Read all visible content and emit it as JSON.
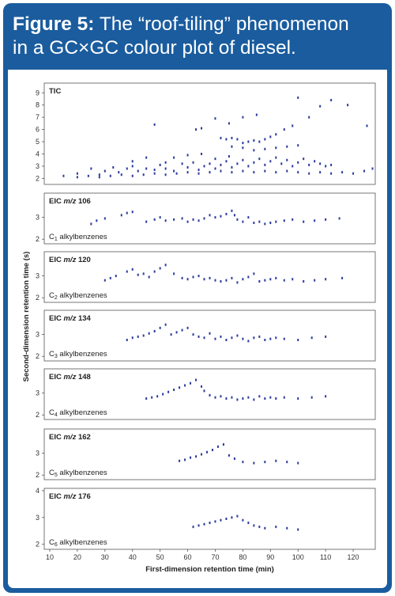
{
  "header": {
    "figure_label": "Figure 5:",
    "title_line1": "The “roof-tiling” phenomenon",
    "title_line2": "in a GC×GC colour plot of diesel."
  },
  "colors": {
    "frame": "#1a5c9e",
    "points": "#2b3a9c"
  },
  "chart_data": {
    "type": "scatter",
    "xlabel": "First-dimension retention time (min)",
    "ylabel": "Second-dimension retention time (s)",
    "xlim": [
      8,
      128
    ],
    "x_ticks": [
      10,
      20,
      30,
      40,
      50,
      60,
      70,
      80,
      90,
      100,
      110,
      120
    ],
    "panels": [
      {
        "label": "TIC",
        "ylim": [
          1.7,
          9.6
        ],
        "y_ticks": [
          2,
          3,
          4,
          5,
          6,
          7,
          8,
          9
        ],
        "points": [
          [
            48,
            6.4
          ],
          [
            63,
            6.0
          ],
          [
            65,
            6.1
          ],
          [
            70,
            6.9
          ],
          [
            75,
            6.5
          ],
          [
            80,
            7.0
          ],
          [
            85,
            7.2
          ],
          [
            100,
            8.6
          ],
          [
            108,
            7.9
          ],
          [
            112,
            8.4
          ],
          [
            118,
            8.0
          ],
          [
            125,
            6.3
          ],
          [
            72,
            5.3
          ],
          [
            74,
            5.2
          ],
          [
            76,
            5.3
          ],
          [
            78,
            5.2
          ],
          [
            80,
            4.9
          ],
          [
            82,
            5.0
          ],
          [
            84,
            5.1
          ],
          [
            86,
            5.0
          ],
          [
            88,
            5.2
          ],
          [
            90,
            5.4
          ],
          [
            92,
            5.6
          ],
          [
            95,
            6.0
          ],
          [
            98,
            6.3
          ],
          [
            104,
            7.0
          ],
          [
            76,
            4.6
          ],
          [
            80,
            4.5
          ],
          [
            84,
            4.3
          ],
          [
            88,
            4.4
          ],
          [
            92,
            4.5
          ],
          [
            96,
            4.6
          ],
          [
            100,
            4.7
          ],
          [
            40,
            3.4
          ],
          [
            45,
            3.7
          ],
          [
            52,
            3.3
          ],
          [
            55,
            3.7
          ],
          [
            60,
            3.9
          ],
          [
            65,
            4.0
          ],
          [
            70,
            3.6
          ],
          [
            75,
            3.8
          ],
          [
            15,
            2.2
          ],
          [
            20,
            2.4
          ],
          [
            25,
            2.8
          ],
          [
            28,
            2.3
          ],
          [
            30,
            2.6
          ],
          [
            33,
            2.9
          ],
          [
            35,
            2.5
          ],
          [
            38,
            2.8
          ],
          [
            40,
            3.0
          ],
          [
            42,
            2.6
          ],
          [
            45,
            2.8
          ],
          [
            48,
            2.7
          ],
          [
            50,
            3.1
          ],
          [
            52,
            2.8
          ],
          [
            55,
            2.6
          ],
          [
            58,
            3.2
          ],
          [
            60,
            2.9
          ],
          [
            62,
            3.3
          ],
          [
            64,
            2.7
          ],
          [
            66,
            3.0
          ],
          [
            68,
            3.2
          ],
          [
            70,
            2.8
          ],
          [
            72,
            3.1
          ],
          [
            74,
            3.4
          ],
          [
            76,
            2.9
          ],
          [
            78,
            3.2
          ],
          [
            80,
            3.5
          ],
          [
            82,
            3.0
          ],
          [
            84,
            3.3
          ],
          [
            86,
            3.6
          ],
          [
            88,
            3.1
          ],
          [
            90,
            3.4
          ],
          [
            92,
            3.7
          ],
          [
            94,
            3.2
          ],
          [
            96,
            3.5
          ],
          [
            98,
            3.0
          ],
          [
            100,
            3.3
          ],
          [
            102,
            3.6
          ],
          [
            104,
            3.1
          ],
          [
            106,
            3.4
          ],
          [
            108,
            3.2
          ],
          [
            110,
            3.0
          ],
          [
            112,
            3.1
          ],
          [
            20,
            2.1
          ],
          [
            24,
            2.2
          ],
          [
            28,
            2.1
          ],
          [
            32,
            2.2
          ],
          [
            36,
            2.3
          ],
          [
            40,
            2.2
          ],
          [
            44,
            2.3
          ],
          [
            48,
            2.4
          ],
          [
            52,
            2.3
          ],
          [
            56,
            2.4
          ],
          [
            60,
            2.5
          ],
          [
            64,
            2.4
          ],
          [
            68,
            2.5
          ],
          [
            72,
            2.6
          ],
          [
            76,
            2.5
          ],
          [
            80,
            2.6
          ],
          [
            84,
            2.5
          ],
          [
            88,
            2.6
          ],
          [
            92,
            2.5
          ],
          [
            96,
            2.6
          ],
          [
            100,
            2.5
          ],
          [
            104,
            2.4
          ],
          [
            108,
            2.5
          ],
          [
            112,
            2.4
          ],
          [
            116,
            2.5
          ],
          [
            120,
            2.4
          ],
          [
            124,
            2.6
          ],
          [
            127,
            2.8
          ]
        ]
      },
      {
        "label": "EIC m/z 106",
        "compound": "C1 alkylbenzenes",
        "ylim": [
          1.9,
          4.0
        ],
        "y_ticks": [
          2,
          3
        ],
        "points": [
          [
            25,
            2.7
          ],
          [
            27,
            2.85
          ],
          [
            30,
            2.95
          ],
          [
            36,
            3.1
          ],
          [
            38,
            3.2
          ],
          [
            40,
            3.25
          ],
          [
            45,
            2.8
          ],
          [
            48,
            2.9
          ],
          [
            50,
            3.0
          ],
          [
            52,
            2.85
          ],
          [
            55,
            2.9
          ],
          [
            58,
            2.95
          ],
          [
            60,
            2.8
          ],
          [
            62,
            2.9
          ],
          [
            64,
            2.85
          ],
          [
            66,
            2.95
          ],
          [
            68,
            3.1
          ],
          [
            70,
            3.0
          ],
          [
            72,
            3.05
          ],
          [
            74,
            3.15
          ],
          [
            76,
            3.3
          ],
          [
            77,
            3.1
          ],
          [
            78,
            2.9
          ],
          [
            80,
            2.8
          ],
          [
            82,
            3.0
          ],
          [
            84,
            2.75
          ],
          [
            86,
            2.8
          ],
          [
            88,
            2.7
          ],
          [
            90,
            2.75
          ],
          [
            92,
            2.8
          ],
          [
            95,
            2.85
          ],
          [
            98,
            2.9
          ],
          [
            102,
            2.8
          ],
          [
            106,
            2.85
          ],
          [
            110,
            2.9
          ],
          [
            115,
            2.95
          ]
        ]
      },
      {
        "label": "EIC m/z 120",
        "compound": "C2 alkylbenzenes",
        "ylim": [
          1.9,
          4.0
        ],
        "y_ticks": [
          2,
          3
        ],
        "points": [
          [
            30,
            2.8
          ],
          [
            32,
            2.9
          ],
          [
            34,
            3.0
          ],
          [
            38,
            3.2
          ],
          [
            40,
            3.3
          ],
          [
            42,
            3.05
          ],
          [
            44,
            3.1
          ],
          [
            46,
            2.95
          ],
          [
            48,
            3.2
          ],
          [
            50,
            3.35
          ],
          [
            52,
            3.5
          ],
          [
            55,
            3.1
          ],
          [
            58,
            2.9
          ],
          [
            60,
            2.85
          ],
          [
            62,
            2.95
          ],
          [
            64,
            3.0
          ],
          [
            66,
            2.85
          ],
          [
            68,
            2.9
          ],
          [
            70,
            2.8
          ],
          [
            72,
            2.75
          ],
          [
            74,
            2.8
          ],
          [
            76,
            2.9
          ],
          [
            78,
            2.7
          ],
          [
            80,
            2.85
          ],
          [
            82,
            2.95
          ],
          [
            84,
            3.1
          ],
          [
            86,
            2.75
          ],
          [
            88,
            2.8
          ],
          [
            90,
            2.85
          ],
          [
            92,
            2.9
          ],
          [
            95,
            2.8
          ],
          [
            98,
            2.85
          ],
          [
            102,
            2.75
          ],
          [
            106,
            2.8
          ],
          [
            110,
            2.85
          ],
          [
            116,
            2.9
          ]
        ]
      },
      {
        "label": "EIC m/z 134",
        "compound": "C3 alkylbenzenes",
        "ylim": [
          1.9,
          4.0
        ],
        "y_ticks": [
          2,
          3
        ],
        "points": [
          [
            38,
            2.75
          ],
          [
            40,
            2.85
          ],
          [
            42,
            2.9
          ],
          [
            44,
            2.95
          ],
          [
            46,
            3.05
          ],
          [
            48,
            3.15
          ],
          [
            50,
            3.3
          ],
          [
            52,
            3.45
          ],
          [
            54,
            3.0
          ],
          [
            56,
            3.1
          ],
          [
            58,
            3.2
          ],
          [
            60,
            3.3
          ],
          [
            62,
            3.0
          ],
          [
            64,
            2.9
          ],
          [
            66,
            2.85
          ],
          [
            68,
            3.05
          ],
          [
            70,
            2.8
          ],
          [
            72,
            2.9
          ],
          [
            74,
            2.75
          ],
          [
            76,
            2.85
          ],
          [
            78,
            2.95
          ],
          [
            80,
            2.8
          ],
          [
            82,
            2.7
          ],
          [
            84,
            2.85
          ],
          [
            86,
            2.9
          ],
          [
            88,
            2.75
          ],
          [
            90,
            2.8
          ],
          [
            92,
            2.85
          ],
          [
            95,
            2.8
          ],
          [
            100,
            2.75
          ],
          [
            105,
            2.85
          ],
          [
            110,
            2.9
          ]
        ]
      },
      {
        "label": "EIC m/z 148",
        "compound": "C4 alkylbenzenes",
        "ylim": [
          1.9,
          4.0
        ],
        "y_ticks": [
          2,
          3
        ],
        "points": [
          [
            45,
            2.75
          ],
          [
            47,
            2.8
          ],
          [
            49,
            2.85
          ],
          [
            51,
            2.95
          ],
          [
            53,
            3.05
          ],
          [
            55,
            3.15
          ],
          [
            57,
            3.25
          ],
          [
            59,
            3.35
          ],
          [
            61,
            3.45
          ],
          [
            63,
            3.6
          ],
          [
            65,
            3.3
          ],
          [
            66,
            3.1
          ],
          [
            68,
            2.9
          ],
          [
            70,
            2.8
          ],
          [
            72,
            2.85
          ],
          [
            74,
            2.75
          ],
          [
            76,
            2.8
          ],
          [
            78,
            2.7
          ],
          [
            80,
            2.75
          ],
          [
            82,
            2.8
          ],
          [
            84,
            2.7
          ],
          [
            86,
            2.85
          ],
          [
            88,
            2.75
          ],
          [
            90,
            2.8
          ],
          [
            92,
            2.75
          ],
          [
            95,
            2.8
          ],
          [
            100,
            2.75
          ],
          [
            105,
            2.8
          ],
          [
            110,
            2.85
          ]
        ]
      },
      {
        "label": "EIC m/z 162",
        "compound": "C5 alkylbenzenes",
        "ylim": [
          1.9,
          4.0
        ],
        "y_ticks": [
          2,
          3
        ],
        "points": [
          [
            57,
            2.65
          ],
          [
            59,
            2.7
          ],
          [
            61,
            2.8
          ],
          [
            63,
            2.85
          ],
          [
            65,
            2.95
          ],
          [
            67,
            3.05
          ],
          [
            69,
            3.15
          ],
          [
            71,
            3.3
          ],
          [
            73,
            3.4
          ],
          [
            75,
            2.9
          ],
          [
            77,
            2.75
          ],
          [
            80,
            2.6
          ],
          [
            84,
            2.55
          ],
          [
            88,
            2.6
          ],
          [
            92,
            2.65
          ],
          [
            96,
            2.6
          ],
          [
            100,
            2.55
          ]
        ]
      },
      {
        "label": "EIC m/z 176",
        "compound": "C6 alkylbenzenes",
        "ylim": [
          1.9,
          4.0
        ],
        "y_ticks": [
          2,
          3,
          4
        ],
        "points": [
          [
            62,
            2.65
          ],
          [
            64,
            2.7
          ],
          [
            66,
            2.75
          ],
          [
            68,
            2.8
          ],
          [
            70,
            2.85
          ],
          [
            72,
            2.9
          ],
          [
            74,
            2.95
          ],
          [
            76,
            3.0
          ],
          [
            78,
            3.05
          ],
          [
            80,
            2.9
          ],
          [
            82,
            2.8
          ],
          [
            84,
            2.7
          ],
          [
            86,
            2.65
          ],
          [
            88,
            2.6
          ],
          [
            92,
            2.65
          ],
          [
            96,
            2.6
          ],
          [
            100,
            2.55
          ]
        ]
      }
    ]
  }
}
